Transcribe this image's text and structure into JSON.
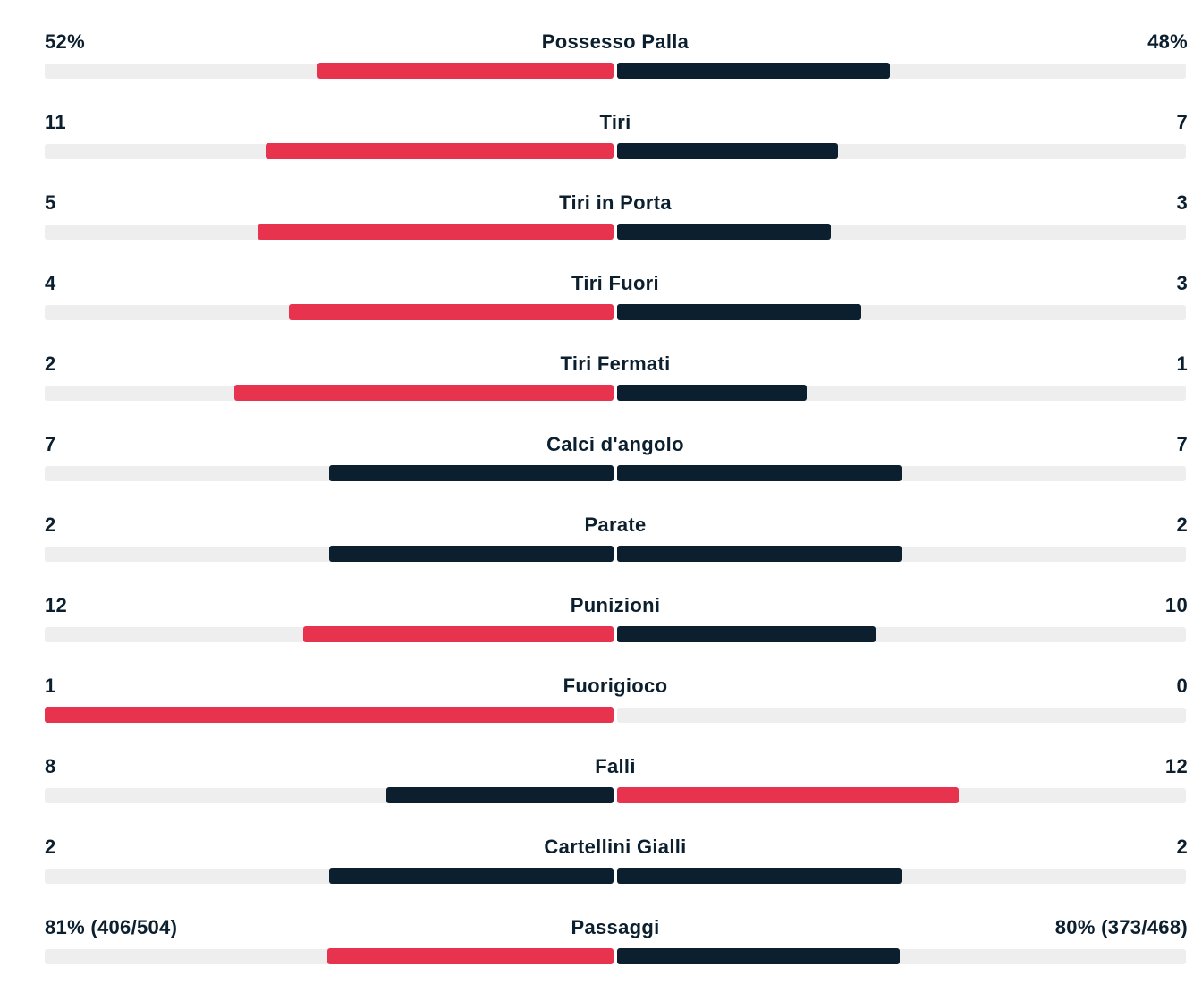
{
  "colors": {
    "leader": "#e8334f",
    "other": "#0b1f2e",
    "track": "#eeeeee"
  },
  "stats": [
    {
      "label": "Possesso Palla",
      "home_text": "52%",
      "away_text": "48%",
      "home_value": 52,
      "away_value": 48
    },
    {
      "label": "Tiri",
      "home_text": "11",
      "away_text": "7",
      "home_value": 11,
      "away_value": 7
    },
    {
      "label": "Tiri in Porta",
      "home_text": "5",
      "away_text": "3",
      "home_value": 5,
      "away_value": 3
    },
    {
      "label": "Tiri Fuori",
      "home_text": "4",
      "away_text": "3",
      "home_value": 4,
      "away_value": 3
    },
    {
      "label": "Tiri Fermati",
      "home_text": "2",
      "away_text": "1",
      "home_value": 2,
      "away_value": 1
    },
    {
      "label": "Calci d'angolo",
      "home_text": "7",
      "away_text": "7",
      "home_value": 7,
      "away_value": 7
    },
    {
      "label": "Parate",
      "home_text": "2",
      "away_text": "2",
      "home_value": 2,
      "away_value": 2
    },
    {
      "label": "Punizioni",
      "home_text": "12",
      "away_text": "10",
      "home_value": 12,
      "away_value": 10
    },
    {
      "label": "Fuorigioco",
      "home_text": "1",
      "away_text": "0",
      "home_value": 1,
      "away_value": 0
    },
    {
      "label": "Falli",
      "home_text": "8",
      "away_text": "12",
      "home_value": 8,
      "away_value": 12
    },
    {
      "label": "Cartellini Gialli",
      "home_text": "2",
      "away_text": "2",
      "home_value": 2,
      "away_value": 2
    },
    {
      "label": "Passaggi",
      "home_text": "81% (406/504)",
      "away_text": "80% (373/468)",
      "home_value": 81,
      "away_value": 80
    }
  ]
}
